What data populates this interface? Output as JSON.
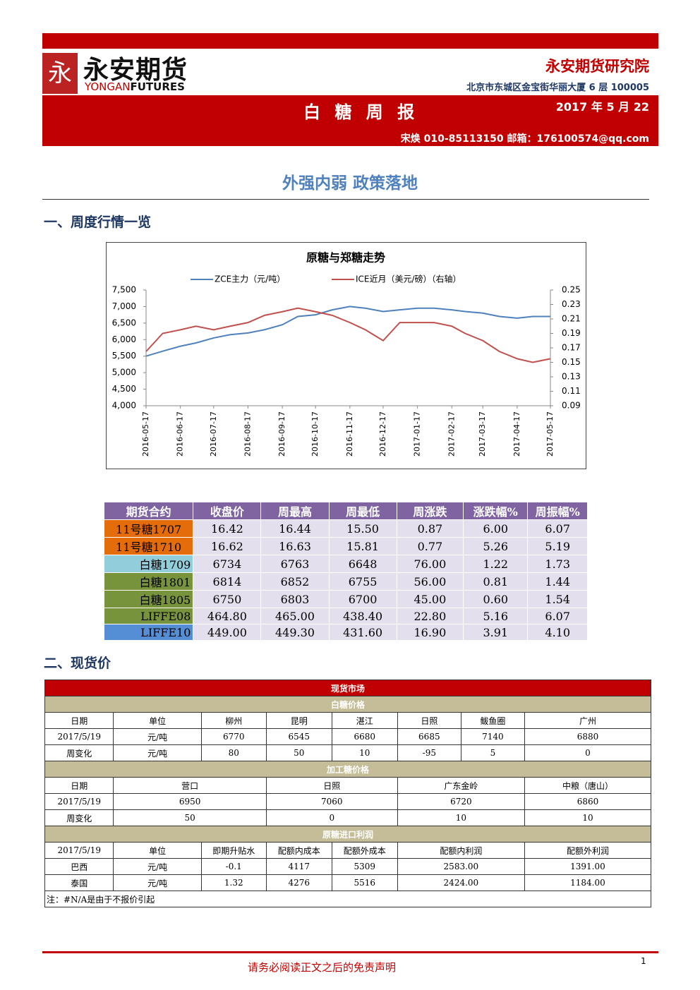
{
  "header": {
    "logo_cn": "永安期货",
    "logo_en_1": "YONGAN",
    "logo_en_2": "FUTURES",
    "institute": "永安期货研究院",
    "address": "北京市东城区金宝街华丽大厦 6 层  100005",
    "report": "白 糖 周 报",
    "date": "2017 年 5 月 22",
    "contact": "宋焕  010-85113150  邮箱：176100574@qq.com"
  },
  "headline": "外强内弱 政策落地",
  "section1": "一、周度行情一览",
  "chart_data": {
    "type": "line",
    "title": "原糖与郑糖走势",
    "x": [
      "2016-05-17",
      "2016-06-01",
      "2016-06-17",
      "2016-07-01",
      "2016-07-17",
      "2016-08-01",
      "2016-08-17",
      "2016-09-01",
      "2016-09-17",
      "2016-10-01",
      "2016-10-17",
      "2016-11-01",
      "2016-11-17",
      "2016-12-01",
      "2016-12-17",
      "2017-01-01",
      "2017-01-17",
      "2017-02-01",
      "2017-02-17",
      "2017-03-01",
      "2017-03-17",
      "2017-04-01",
      "2017-04-17",
      "2017-05-01",
      "2017-05-17"
    ],
    "xlim": [
      "2016-05-17",
      "2017-05-17"
    ],
    "xticks": [
      "2016-05-17",
      "2016-06-17",
      "2016-07-17",
      "2016-08-17",
      "2016-09-17",
      "2016-10-17",
      "2016-11-17",
      "2016-12-17",
      "2017-01-17",
      "2017-02-17",
      "2017-03-17",
      "2017-04-17",
      "2017-05-17"
    ],
    "ylim": [
      4000,
      7500
    ],
    "yticks": [
      {
        "value": 4000,
        "label": "4,000"
      },
      {
        "value": 4500,
        "label": "4,500"
      },
      {
        "value": 5000,
        "label": "5,000"
      },
      {
        "value": 5500,
        "label": "5,500"
      },
      {
        "value": 6000,
        "label": "6,000"
      },
      {
        "value": 6500,
        "label": "6,500"
      },
      {
        "value": 7000,
        "label": "7,000"
      },
      {
        "value": 7500,
        "label": "7,500"
      }
    ],
    "y2lim": [
      0.09,
      0.25
    ],
    "y2ticks": [
      0.09,
      0.11,
      0.13,
      0.15,
      0.17,
      0.19,
      0.21,
      0.23,
      0.25
    ],
    "series": [
      {
        "name": "ZCE主力（元/吨）",
        "color": "#4f81bd",
        "values": [
          5500,
          5650,
          5800,
          5900,
          6050,
          6150,
          6200,
          6300,
          6450,
          6700,
          6750,
          6900,
          7000,
          6950,
          6850,
          6900,
          6950,
          6950,
          6900,
          6850,
          6800,
          6700,
          6650,
          6700,
          6700
        ]
      },
      {
        "name": "ICE近月（美元/磅）（右轴）",
        "color": "#c0504d",
        "axis": "y2",
        "values": [
          0.165,
          0.19,
          0.195,
          0.2,
          0.195,
          0.2,
          0.205,
          0.215,
          0.22,
          0.225,
          0.22,
          0.215,
          0.205,
          0.195,
          0.18,
          0.205,
          0.205,
          0.205,
          0.2,
          0.19,
          0.18,
          0.165,
          0.155,
          0.15,
          0.155
        ]
      }
    ]
  },
  "futures": {
    "header": [
      "期货合约",
      "收盘价",
      "周最高",
      "周最低",
      "周涨跌",
      "涨跌幅%",
      "周振幅%"
    ],
    "rows": [
      [
        "11号糖1707",
        "16.42",
        "16.44",
        "15.50",
        "0.87",
        "6.00",
        "6.07"
      ],
      [
        "11号糖1710",
        "16.62",
        "16.63",
        "15.81",
        "0.77",
        "5.26",
        "5.19"
      ],
      [
        "白糖1709",
        "6734",
        "6763",
        "6648",
        "76.00",
        "1.22",
        "1.73"
      ],
      [
        "白糖1801",
        "6814",
        "6852",
        "6755",
        "56.00",
        "0.81",
        "1.44"
      ],
      [
        "白糖1805",
        "6750",
        "6803",
        "6700",
        "45.00",
        "0.60",
        "1.54"
      ],
      [
        "LIFFE08",
        "464.80",
        "465.00",
        "438.40",
        "22.80",
        "5.16",
        "6.07"
      ],
      [
        "LIFFE10",
        "449.00",
        "449.30",
        "431.60",
        "16.90",
        "3.91",
        "4.10"
      ]
    ]
  },
  "section2": "二、现货价",
  "spot": {
    "title": "现货市场",
    "white": {
      "title": "白糖价格",
      "header": [
        "日期",
        "单位",
        "柳州",
        "昆明",
        "湛江",
        "日照",
        "鲅鱼圈",
        "广州"
      ],
      "rows": [
        [
          "2017/5/19",
          "元/吨",
          "6770",
          "6545",
          "6680",
          "6685",
          "7140",
          "6880"
        ],
        [
          "周变化",
          "元/吨",
          "80",
          "50",
          "10",
          "-95",
          "5",
          "0"
        ]
      ]
    },
    "processed": {
      "title": "加工糖价格",
      "header": [
        "日期",
        "营口",
        "日照",
        "广东金岭",
        "中粮（唐山）"
      ],
      "rows": [
        [
          "2017/5/19",
          "6950",
          "7060",
          "6720",
          "6860"
        ],
        [
          "周变化",
          "50",
          "0",
          "10",
          "10"
        ]
      ]
    },
    "import": {
      "title": "原糖进口利润",
      "header": [
        "2017/5/19",
        "单位",
        "即期升贴水",
        "配额内成本",
        "配额外成本",
        "配额内利润",
        "配额外利润"
      ],
      "rows": [
        [
          "巴西",
          "元/吨",
          "-0.1",
          "4117",
          "5309",
          "2583.00",
          "1391.00"
        ],
        [
          "泰国",
          "元/吨",
          "1.32",
          "4276",
          "5516",
          "2424.00",
          "1184.00"
        ]
      ]
    },
    "note": "注：#N/A是由于不报价引起"
  },
  "footer": {
    "disclaimer": "请务必阅读正文之后的免责声明",
    "page": "1"
  }
}
